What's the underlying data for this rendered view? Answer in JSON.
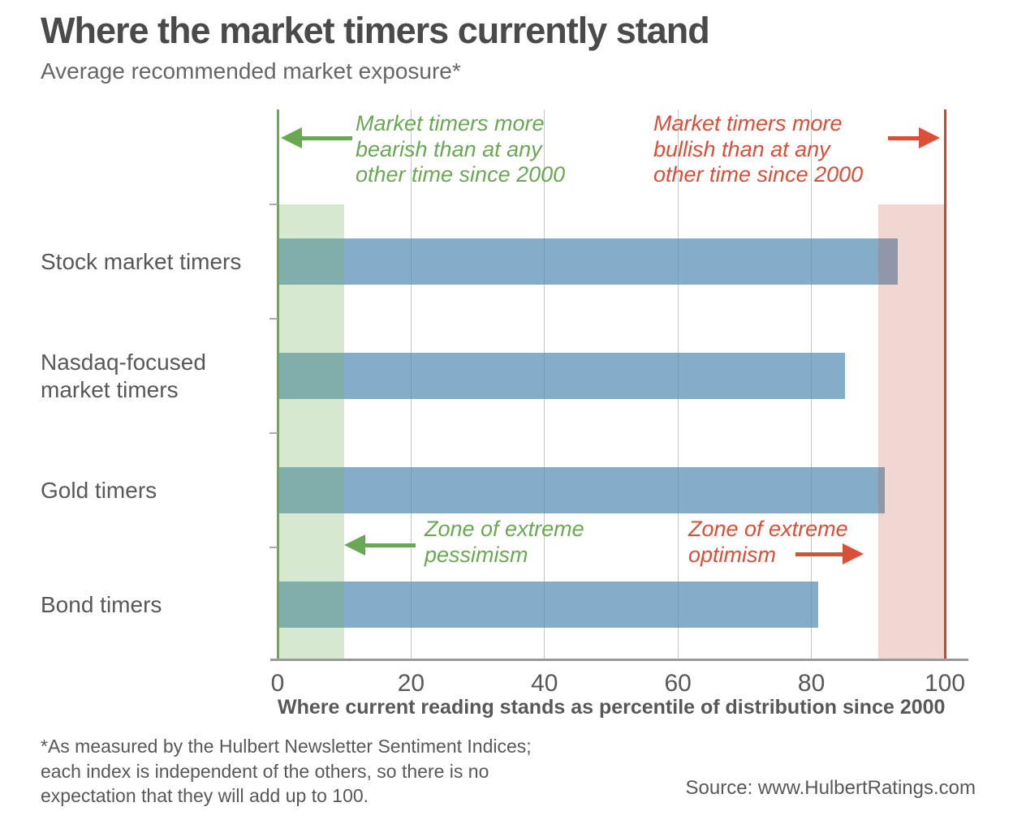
{
  "header": {
    "title": "Where the market timers currently stand",
    "subtitle": "Average recommended market exposure*"
  },
  "chart_data": {
    "type": "bar",
    "orientation": "horizontal",
    "title": "Where the market timers currently stand",
    "subtitle": "Average recommended market exposure*",
    "categories": [
      "Stock market timers",
      "Nasdaq-focused\nmarket timers",
      "Gold timers",
      "Bond timers"
    ],
    "values": [
      93,
      85,
      91,
      81
    ],
    "xlabel": "Where current reading stands as percentile of distribution since 2000",
    "xlim": [
      0,
      100
    ],
    "xticks": [
      0,
      20,
      40,
      60,
      80,
      100
    ],
    "grid": "vertical gridlines at 20, 40, 60, 80",
    "legend": "none",
    "zones": [
      {
        "label": "Zone of extreme pessimism",
        "from": 0,
        "to": 10,
        "color": "green"
      },
      {
        "label": "Zone of extreme optimism",
        "from": 90,
        "to": 100,
        "color": "red"
      }
    ],
    "reference_lines": [
      {
        "x": 0,
        "color": "green"
      },
      {
        "x": 100,
        "color": "red"
      }
    ]
  },
  "annotations": {
    "bearish": "Market timers more\nbearish than at any\nother time since 2000",
    "bullish": "Market timers more\nbullish than at any\nother time since 2000",
    "pessimism": "Zone of extreme\npessimism",
    "optimism": "Zone of extreme\noptimism"
  },
  "footnote": "*As measured by the Hulbert Newsletter Sentiment Indices;\neach index is independent of the others, so there is no\nexpectation that they will add up to 100.",
  "source": "Source: www.HulbertRatings.com",
  "colors": {
    "bar_fill": "rgba(85,142,180,0.72)",
    "bar_apparent": "#85b0cb",
    "green_accent": "#6aa953",
    "red_accent": "#d94f38",
    "red_line": "#e03a2a",
    "green_zone_fill": "rgba(120,179,99,0.29)",
    "red_zone_fill": "rgba(188,72,50,0.22)",
    "grid": "#c6c6c6",
    "axis": "#999999",
    "text_dark": "#4a4a4a",
    "text_mid": "#666666",
    "text_gray": "#585858"
  }
}
